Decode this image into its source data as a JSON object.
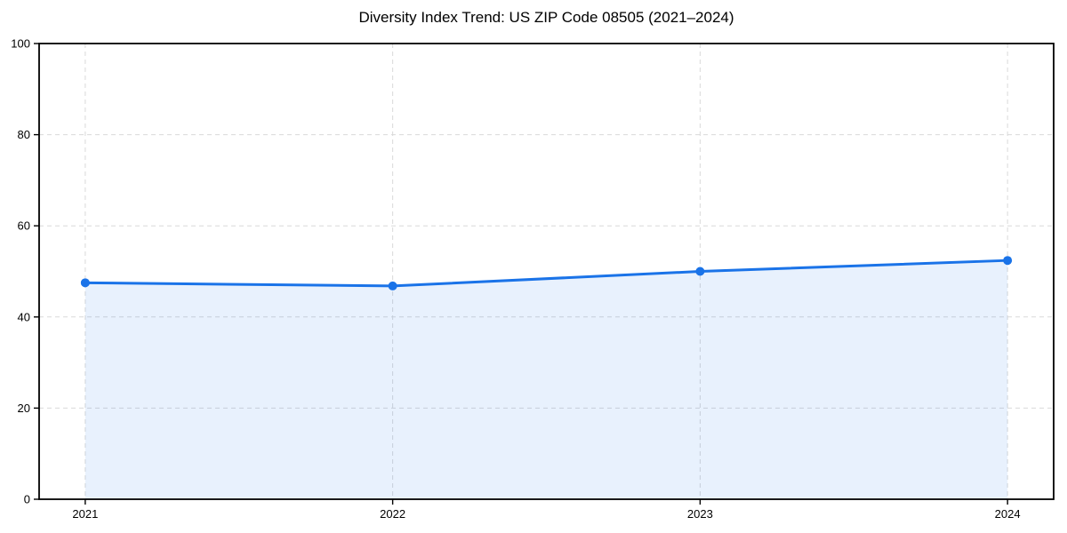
{
  "chart_data": {
    "type": "area",
    "title": "Diversity Index Trend: US ZIP Code 08505 (2021–2024)",
    "x": [
      2021,
      2022,
      2023,
      2024
    ],
    "x_tick_labels": [
      "2021",
      "2022",
      "2023",
      "2024"
    ],
    "series": [
      {
        "name": "Diversity Index",
        "values": [
          47.5,
          46.8,
          50.0,
          52.4
        ]
      }
    ],
    "xlabel": "",
    "ylabel": "",
    "ylim": [
      0,
      100
    ],
    "yticks": [
      0,
      20,
      40,
      60,
      80,
      100
    ],
    "grid": "dashed",
    "legend": "none",
    "marker": "circle",
    "colors": {
      "line": "#1a73e8",
      "fill": "rgba(26,115,232,0.10)",
      "grid": "#d9d9d9",
      "spine": "#000000",
      "text": "#000000",
      "background": "#ffffff"
    }
  }
}
